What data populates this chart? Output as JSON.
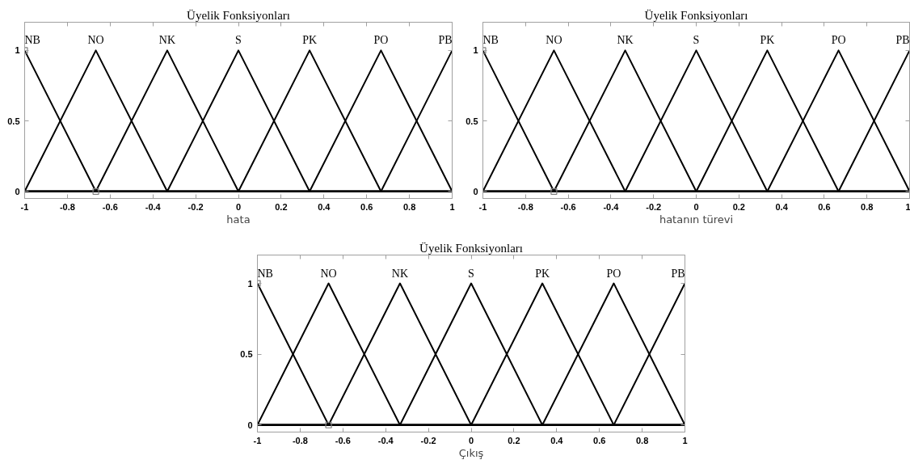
{
  "chart_data": [
    {
      "type": "line",
      "title": "Üyelik Fonksiyonları",
      "xlabel": "hata",
      "xlim": [
        -1,
        1
      ],
      "ylim": [
        -0.05,
        1.2
      ],
      "xticks": [
        -1,
        -0.8,
        -0.6,
        -0.4,
        -0.2,
        0,
        0.2,
        0.4,
        0.6,
        0.8,
        1
      ],
      "yticks": [
        0,
        0.5,
        1
      ],
      "grid": false,
      "series": [
        {
          "name": "NB",
          "color": "#000000",
          "x": [
            -1,
            -0.667,
            1
          ],
          "values": [
            1,
            0,
            0
          ]
        },
        {
          "name": "NO",
          "color": "#000000",
          "x": [
            -1,
            -0.667,
            -0.333,
            1
          ],
          "values": [
            0,
            1,
            0,
            0
          ]
        },
        {
          "name": "NK",
          "color": "#000000",
          "x": [
            -1,
            -0.667,
            -0.333,
            0,
            1
          ],
          "values": [
            0,
            0,
            1,
            0,
            0
          ]
        },
        {
          "name": "S",
          "color": "#000000",
          "x": [
            -1,
            -0.333,
            0,
            0.333,
            1
          ],
          "values": [
            0,
            0,
            1,
            0,
            0
          ]
        },
        {
          "name": "PK",
          "color": "#000000",
          "x": [
            -1,
            0,
            0.333,
            0.667,
            1
          ],
          "values": [
            0,
            0,
            1,
            0,
            0
          ]
        },
        {
          "name": "PO",
          "color": "#000000",
          "x": [
            -1,
            0.333,
            0.667,
            1
          ],
          "values": [
            0,
            0,
            1,
            0
          ]
        },
        {
          "name": "PB",
          "color": "#000000",
          "x": [
            -1,
            0.667,
            1
          ],
          "values": [
            0,
            0,
            1
          ]
        },
        {
          "type": "scatter",
          "marker": "square",
          "color": "#7f7f7f",
          "x": [
            -1,
            -0.667
          ],
          "values": [
            1,
            0
          ]
        }
      ]
    },
    {
      "type": "line",
      "title": "Üyelik Fonksiyonları",
      "xlabel": "hatanın türevi",
      "xlim": [
        -1,
        1
      ],
      "ylim": [
        -0.05,
        1.2
      ],
      "xticks": [
        -1,
        -0.8,
        -0.6,
        -0.4,
        -0.2,
        0,
        0.2,
        0.4,
        0.6,
        0.8,
        1
      ],
      "yticks": [
        0,
        0.5,
        1
      ],
      "grid": false,
      "series": [
        {
          "name": "NB",
          "color": "#000000",
          "x": [
            -1,
            -0.667,
            1
          ],
          "values": [
            1,
            0,
            0
          ]
        },
        {
          "name": "NO",
          "color": "#000000",
          "x": [
            -1,
            -0.667,
            -0.333,
            1
          ],
          "values": [
            0,
            1,
            0,
            0
          ]
        },
        {
          "name": "NK",
          "color": "#000000",
          "x": [
            -1,
            -0.667,
            -0.333,
            0,
            1
          ],
          "values": [
            0,
            0,
            1,
            0,
            0
          ]
        },
        {
          "name": "S",
          "color": "#000000",
          "x": [
            -1,
            -0.333,
            0,
            0.333,
            1
          ],
          "values": [
            0,
            0,
            1,
            0,
            0
          ]
        },
        {
          "name": "PK",
          "color": "#000000",
          "x": [
            -1,
            0,
            0.333,
            0.667,
            1
          ],
          "values": [
            0,
            0,
            1,
            0,
            0
          ]
        },
        {
          "name": "PO",
          "color": "#000000",
          "x": [
            -1,
            0.333,
            0.667,
            1
          ],
          "values": [
            0,
            0,
            1,
            0
          ]
        },
        {
          "name": "PB",
          "color": "#000000",
          "x": [
            -1,
            0.667,
            1
          ],
          "values": [
            0,
            0,
            1
          ]
        },
        {
          "type": "scatter",
          "marker": "square",
          "color": "#7f7f7f",
          "x": [
            -1,
            -0.667
          ],
          "values": [
            1,
            0
          ]
        }
      ]
    },
    {
      "type": "line",
      "title": "Üyelik Fonksiyonları",
      "xlabel": "Çıkış",
      "xlim": [
        -1,
        1
      ],
      "ylim": [
        -0.05,
        1.2
      ],
      "xticks": [
        -1,
        -0.8,
        -0.6,
        -0.4,
        -0.2,
        0,
        0.2,
        0.4,
        0.6,
        0.8,
        1
      ],
      "yticks": [
        0,
        0.5,
        1
      ],
      "grid": false,
      "series": [
        {
          "name": "NB",
          "color": "#000000",
          "x": [
            -1,
            -0.667,
            1
          ],
          "values": [
            1,
            0,
            0
          ]
        },
        {
          "name": "NO",
          "color": "#000000",
          "x": [
            -1,
            -0.667,
            -0.333,
            1
          ],
          "values": [
            0,
            1,
            0,
            0
          ]
        },
        {
          "name": "NK",
          "color": "#000000",
          "x": [
            -1,
            -0.667,
            -0.333,
            0,
            1
          ],
          "values": [
            0,
            0,
            1,
            0,
            0
          ]
        },
        {
          "name": "S",
          "color": "#000000",
          "x": [
            -1,
            -0.333,
            0,
            0.333,
            1
          ],
          "values": [
            0,
            0,
            1,
            0,
            0
          ]
        },
        {
          "name": "PK",
          "color": "#000000",
          "x": [
            -1,
            0,
            0.333,
            0.667,
            1
          ],
          "values": [
            0,
            0,
            1,
            0,
            0
          ]
        },
        {
          "name": "PO",
          "color": "#000000",
          "x": [
            -1,
            0.333,
            0.667,
            1
          ],
          "values": [
            0,
            0,
            1,
            0
          ]
        },
        {
          "name": "PB",
          "color": "#000000",
          "x": [
            -1,
            0.667,
            1
          ],
          "values": [
            0,
            0,
            1
          ]
        },
        {
          "type": "scatter",
          "marker": "square",
          "color": "#7f7f7f",
          "x": [
            -1,
            -0.667
          ],
          "values": [
            1,
            0
          ]
        }
      ]
    }
  ]
}
